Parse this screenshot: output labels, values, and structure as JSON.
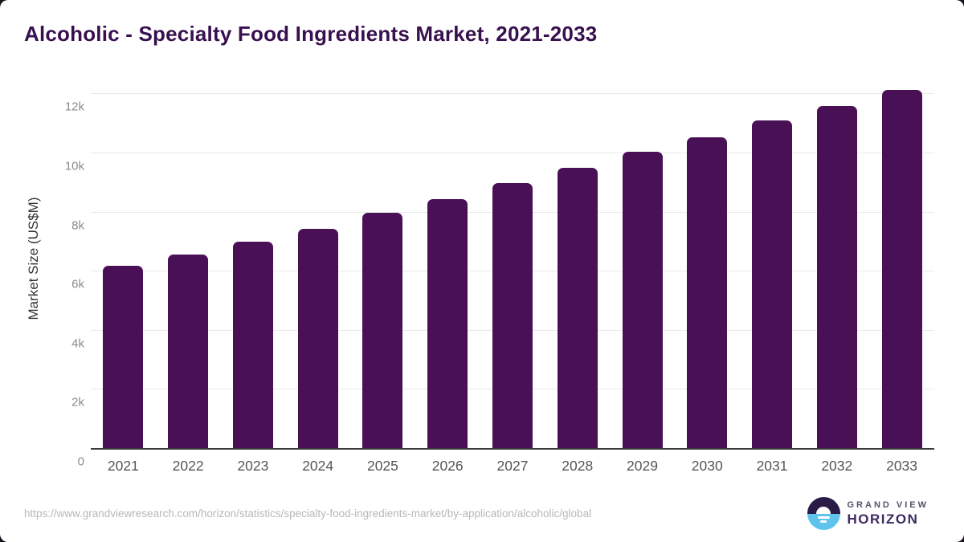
{
  "title": "Alcoholic - Specialty Food Ingredients Market, 2021-2033",
  "chart_data": {
    "type": "bar",
    "title": "Alcoholic - Specialty Food Ingredients Market, 2021-2033",
    "categories": [
      "2021",
      "2022",
      "2023",
      "2024",
      "2025",
      "2026",
      "2027",
      "2028",
      "2029",
      "2030",
      "2031",
      "2032",
      "2033"
    ],
    "values": [
      6200,
      6570,
      7000,
      7450,
      7980,
      8460,
      8980,
      9500,
      10040,
      10530,
      11100,
      11610,
      12140
    ],
    "xlabel": "",
    "ylabel": "Market Size (US$M)",
    "ylim": [
      0,
      12470
    ],
    "yticks": [
      {
        "value": 0,
        "label": "0"
      },
      {
        "value": 2000,
        "label": "2k"
      },
      {
        "value": 4000,
        "label": "4k"
      },
      {
        "value": 6000,
        "label": "6k"
      },
      {
        "value": 8000,
        "label": "8k"
      },
      {
        "value": 10000,
        "label": "10k"
      },
      {
        "value": 12000,
        "label": "12k"
      }
    ],
    "grid": "horizontal",
    "legend": "none",
    "bar_color": "#4a1056"
  },
  "footer": {
    "source_url": "https://www.grandviewresearch.com/horizon/statistics/specialty-food-ingredients-market/by-application/alcoholic/global",
    "logo": {
      "line1": "GRAND VIEW",
      "line2": "HORIZON"
    }
  },
  "colors": {
    "title": "#38104f",
    "bar": "#4a1056",
    "gridline": "#e9e9e9",
    "axis_line": "#3b3b3b",
    "y_tick": "#8b8b8b",
    "x_tick": "#555555",
    "y_axis_title": "#333333",
    "url_text": "#b8b8b8",
    "logo_dark": "#2b1b47",
    "logo_blue": "#5fc4ec",
    "page_background": "#17131b",
    "card_background": "#ffffff"
  }
}
